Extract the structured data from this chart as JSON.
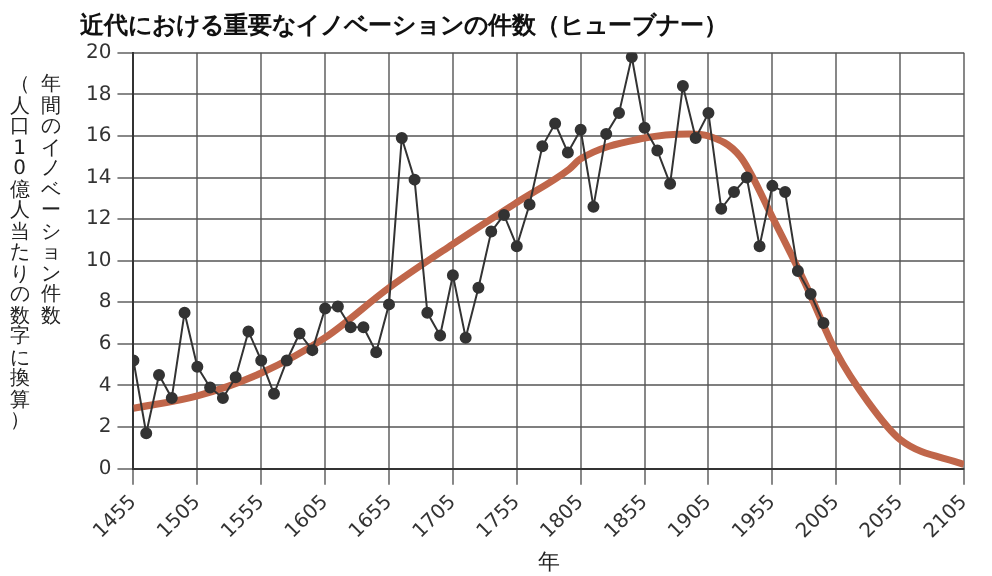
{
  "chart_data": {
    "type": "line",
    "title": "近代における重要なイノベーションの件数（ヒューブナー）",
    "xlabel": "年",
    "ylabel": "年間のイノベーション件数（人口10億人当たりの数字に換算）",
    "xlim": [
      1455,
      2105
    ],
    "xticks": [
      1455,
      1505,
      1555,
      1605,
      1655,
      1705,
      1755,
      1805,
      1855,
      1905,
      1955,
      2005,
      2055,
      2105
    ],
    "ylim": [
      0,
      20
    ],
    "yticks": [
      0,
      2,
      4,
      6,
      8,
      10,
      12,
      14,
      16,
      18,
      20
    ],
    "grid": true,
    "legend": false,
    "series": [
      {
        "type": "line",
        "color": "#333333",
        "marker": "circle",
        "x": [
          1455,
          1465,
          1475,
          1485,
          1495,
          1505,
          1515,
          1525,
          1535,
          1545,
          1555,
          1565,
          1575,
          1585,
          1595,
          1605,
          1615,
          1625,
          1635,
          1645,
          1655,
          1665,
          1675,
          1685,
          1695,
          1705,
          1715,
          1725,
          1735,
          1745,
          1755,
          1765,
          1775,
          1785,
          1795,
          1805,
          1815,
          1825,
          1835,
          1845,
          1855,
          1865,
          1875,
          1885,
          1895,
          1905,
          1915,
          1925,
          1935,
          1945,
          1955,
          1965,
          1975,
          1985,
          1995
        ],
        "values": [
          5.2,
          1.7,
          4.5,
          3.4,
          7.5,
          4.9,
          3.9,
          3.4,
          4.4,
          6.6,
          5.2,
          3.6,
          5.2,
          6.5,
          5.7,
          7.7,
          7.8,
          6.8,
          6.8,
          5.6,
          7.9,
          15.9,
          13.9,
          7.5,
          6.4,
          9.3,
          6.3,
          8.7,
          11.4,
          12.2,
          10.7,
          12.7,
          15.5,
          16.6,
          15.2,
          16.3,
          12.6,
          16.1,
          17.1,
          19.8,
          16.4,
          15.3,
          13.7,
          18.4,
          15.9,
          17.1,
          12.5,
          13.3,
          14.0,
          10.7,
          13.6,
          13.3,
          9.5,
          8.4,
          7.0
        ]
      },
      {
        "type": "line",
        "color": "#c0664a",
        "marker": "none",
        "x": [
          1455,
          1505,
          1555,
          1605,
          1655,
          1705,
          1755,
          1796,
          1805,
          1855,
          1890,
          1905,
          1930,
          1955,
          1980,
          2005,
          2030,
          2055,
          2105
        ],
        "values": [
          2.9,
          3.5,
          4.6,
          6.3,
          8.7,
          10.8,
          12.8,
          14.4,
          14.9,
          15.9,
          16.1,
          16.0,
          15.0,
          12.1,
          9.0,
          5.6,
          3.2,
          1.4,
          0.2
        ]
      }
    ]
  }
}
